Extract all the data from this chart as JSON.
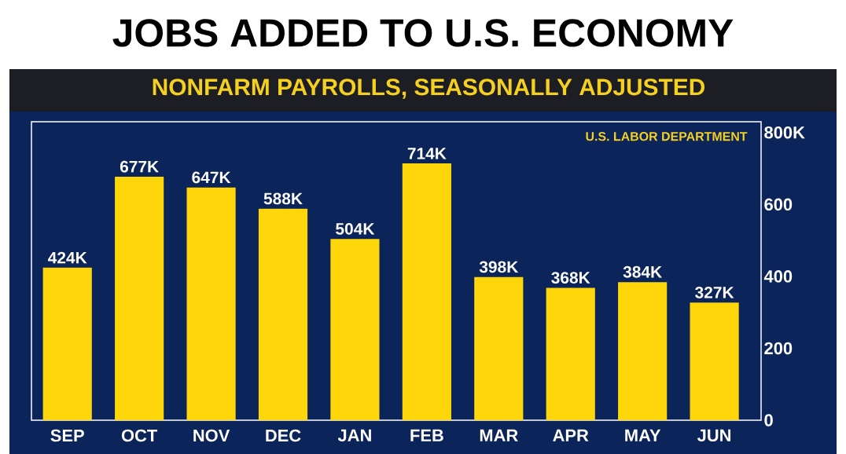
{
  "chart_data": {
    "type": "bar",
    "title": "JOBS ADDED TO U.S. ECONOMY",
    "subtitle": "NONFARM PAYROLLS, SEASONALLY ADJUSTED",
    "categories": [
      "SEP",
      "OCT",
      "NOV",
      "DEC",
      "JAN",
      "FEB",
      "MAR",
      "APR",
      "MAY",
      "JUN"
    ],
    "values": [
      424,
      677,
      647,
      588,
      504,
      714,
      398,
      368,
      384,
      327
    ],
    "value_labels": [
      "424K",
      "677K",
      "647K",
      "588K",
      "504K",
      "714K",
      "398K",
      "368K",
      "384K",
      "327K"
    ],
    "color": "#ffd60a",
    "ylim": [
      0,
      830
    ],
    "yticks": [
      0,
      200,
      400,
      600,
      {
        "value": 800,
        "label": "800K"
      }
    ],
    "annotations": [
      "U.S. LABOR DEPARTMENT"
    ]
  }
}
